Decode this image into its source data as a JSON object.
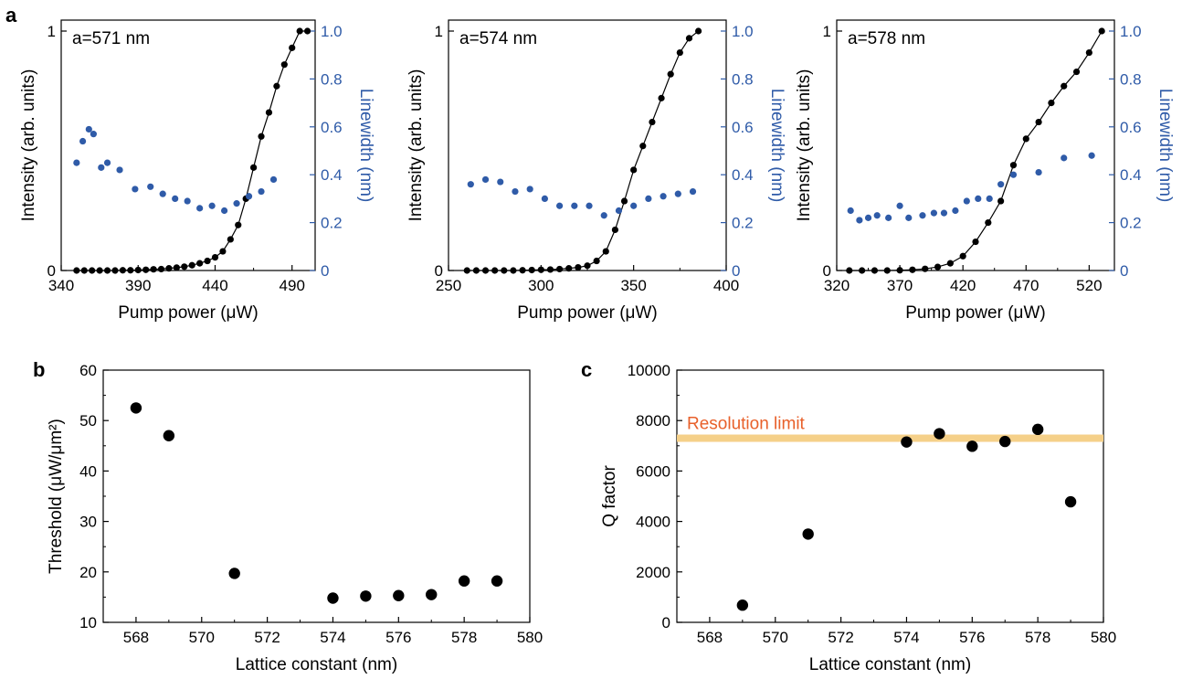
{
  "figure": {
    "panel_letters": [
      "a",
      "b",
      "c"
    ],
    "colors": {
      "intensity": "#000000",
      "linewidth": "#2f5ba8",
      "resolution_band": "#f5d089",
      "resolution_text": "#e8602a"
    }
  },
  "chart_data": [
    {
      "id": "a1",
      "type": "scatter",
      "annotation": "a=571 nm",
      "xlabel": "Pump power (μW)",
      "ylabel": "Intensity (arb. units)",
      "y2label": "Linewidth (nm)",
      "xlim": [
        340,
        505
      ],
      "ylim": [
        0,
        1
      ],
      "y2lim": [
        0,
        1.0
      ],
      "xticks": [
        340,
        390,
        440,
        490
      ],
      "yticks": [
        0,
        1
      ],
      "y2ticks": [
        0,
        0.2,
        0.4,
        0.6,
        0.8,
        1.0
      ],
      "y2ticklabels": [
        "0",
        "0.2",
        "0.4",
        "0.6",
        "0.8",
        "1.0"
      ],
      "intensity": {
        "x": [
          350,
          355,
          360,
          365,
          370,
          375,
          380,
          385,
          390,
          395,
          400,
          405,
          410,
          415,
          420,
          425,
          430,
          435,
          440,
          445,
          450,
          455,
          460,
          465,
          470,
          475,
          480,
          485,
          490,
          495,
          500
        ],
        "y": [
          0,
          0,
          0,
          0,
          0,
          0,
          0.001,
          0.001,
          0.002,
          0.003,
          0.005,
          0.006,
          0.009,
          0.012,
          0.016,
          0.022,
          0.03,
          0.04,
          0.055,
          0.08,
          0.13,
          0.19,
          0.3,
          0.43,
          0.56,
          0.66,
          0.77,
          0.86,
          0.93,
          1.0,
          1.0
        ],
        "line": true
      },
      "linewidth": {
        "x": [
          350,
          354,
          358,
          361,
          366,
          370,
          378,
          388,
          398,
          406,
          414,
          422,
          430,
          438,
          446,
          454,
          462,
          470,
          478
        ],
        "y": [
          0.45,
          0.54,
          0.59,
          0.57,
          0.43,
          0.45,
          0.42,
          0.34,
          0.35,
          0.32,
          0.3,
          0.29,
          0.26,
          0.27,
          0.25,
          0.28,
          0.31,
          0.33,
          0.38
        ]
      }
    },
    {
      "id": "a2",
      "type": "scatter",
      "annotation": "a=574 nm",
      "xlabel": "Pump power (μW)",
      "ylabel": "Intensity (arb. units)",
      "y2label": "Linewidth (nm)",
      "xlim": [
        250,
        400
      ],
      "ylim": [
        0,
        1
      ],
      "y2lim": [
        0,
        1.0
      ],
      "xticks": [
        250,
        300,
        350,
        400
      ],
      "yticks": [
        0,
        1
      ],
      "y2ticks": [
        0,
        0.2,
        0.4,
        0.6,
        0.8,
        1.0
      ],
      "y2ticklabels": [
        "0",
        "0.2",
        "0.4",
        "0.6",
        "0.8",
        "1.0"
      ],
      "intensity": {
        "x": [
          260,
          265,
          270,
          275,
          280,
          285,
          290,
          295,
          300,
          305,
          310,
          315,
          320,
          325,
          330,
          335,
          340,
          345,
          350,
          355,
          360,
          365,
          370,
          375,
          380,
          385
        ],
        "y": [
          0,
          0,
          0,
          0,
          0,
          0,
          0.001,
          0.002,
          0.003,
          0.004,
          0.006,
          0.009,
          0.013,
          0.02,
          0.04,
          0.08,
          0.17,
          0.29,
          0.42,
          0.52,
          0.62,
          0.72,
          0.82,
          0.91,
          0.97,
          1.0
        ],
        "line": true
      },
      "linewidth": {
        "x": [
          262,
          270,
          278,
          286,
          294,
          302,
          310,
          318,
          326,
          334,
          342,
          350,
          358,
          366,
          374,
          382
        ],
        "y": [
          0.36,
          0.38,
          0.37,
          0.33,
          0.34,
          0.3,
          0.27,
          0.27,
          0.27,
          0.23,
          0.25,
          0.27,
          0.3,
          0.31,
          0.32,
          0.33
        ]
      }
    },
    {
      "id": "a3",
      "type": "scatter",
      "annotation": "a=578 nm",
      "xlabel": "Pump power (μW)",
      "ylabel": "Intensity (arb. units)",
      "y2label": "Linewidth (nm)",
      "xlim": [
        320,
        540
      ],
      "ylim": [
        0,
        1
      ],
      "y2lim": [
        0,
        1.0
      ],
      "xticks": [
        320,
        370,
        420,
        470,
        520
      ],
      "yticks": [
        0,
        1
      ],
      "y2ticks": [
        0,
        0.2,
        0.4,
        0.6,
        0.8,
        1.0
      ],
      "y2ticklabels": [
        "0",
        "0.2",
        "0.4",
        "0.6",
        "0.8",
        "1.0"
      ],
      "intensity": {
        "x": [
          330,
          340,
          350,
          360,
          370,
          380,
          390,
          400,
          410,
          420,
          430,
          440,
          450,
          460,
          470,
          480,
          490,
          500,
          510,
          520,
          530
        ],
        "y": [
          0,
          0,
          0,
          0,
          0.001,
          0.003,
          0.007,
          0.015,
          0.03,
          0.06,
          0.12,
          0.2,
          0.29,
          0.44,
          0.55,
          0.62,
          0.7,
          0.77,
          0.83,
          0.91,
          1.0
        ],
        "line": true
      },
      "linewidth": {
        "x": [
          331,
          338,
          345,
          352,
          361,
          370,
          377,
          388,
          397,
          405,
          414,
          423,
          432,
          441,
          450,
          460,
          480,
          500,
          522
        ],
        "y": [
          0.25,
          0.21,
          0.22,
          0.23,
          0.22,
          0.27,
          0.22,
          0.23,
          0.24,
          0.24,
          0.25,
          0.29,
          0.3,
          0.3,
          0.36,
          0.4,
          0.41,
          0.47,
          0.48
        ]
      }
    },
    {
      "id": "b",
      "type": "scatter",
      "xlabel": "Lattice constant (nm)",
      "ylabel": "Threshold (μW/μm²)",
      "xlim": [
        567,
        580
      ],
      "ylim": [
        10,
        60
      ],
      "xticks": [
        568,
        570,
        572,
        574,
        576,
        578,
        580
      ],
      "yticks": [
        10,
        20,
        30,
        40,
        50,
        60
      ],
      "x": [
        568,
        569,
        571,
        574,
        575,
        576,
        577,
        578,
        579
      ],
      "y": [
        52.5,
        47,
        19.7,
        14.8,
        15.2,
        15.3,
        15.5,
        18.2,
        18.2
      ]
    },
    {
      "id": "c",
      "type": "scatter",
      "xlabel": "Lattice constant (nm)",
      "ylabel": "Q factor",
      "annotation": "Resolution limit",
      "resolution_limit": 7300,
      "xlim": [
        567,
        580
      ],
      "ylim": [
        0,
        10000
      ],
      "xticks": [
        568,
        570,
        572,
        574,
        576,
        578,
        580
      ],
      "yticks": [
        0,
        2000,
        4000,
        6000,
        8000,
        10000
      ],
      "x": [
        569,
        571,
        574,
        575,
        576,
        577,
        578,
        579
      ],
      "y": [
        680,
        3500,
        7150,
        7480,
        6980,
        7170,
        7650,
        4780
      ]
    }
  ]
}
